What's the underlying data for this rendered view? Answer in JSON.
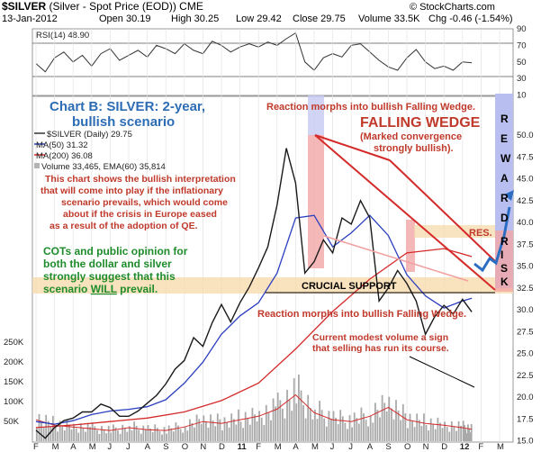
{
  "header": {
    "symbol": "$SILVER",
    "name": "(Silver - Spot Price (EOD))",
    "exchange": "CME",
    "date": "13-Jan-2012",
    "open": "Open 30.19",
    "high": "High 30.25",
    "low": "Low 29.42",
    "close": "Close 29.75",
    "volume": "Volume 33.5K",
    "change": "Chg -0.46 (-1.54%)",
    "watermark": "© StockCharts.com"
  },
  "rsi": {
    "label": "RSI(14) 48.90",
    "ticks": [
      "90",
      "70",
      "50",
      "30",
      "10"
    ]
  },
  "price_legend": {
    "daily": "$SILVER (Daily) 29.75",
    "ma50": "MA(50) 31.32",
    "ma200": "MA(200) 36.08",
    "volume": "Volume 33,465, EMA(60) 35,814"
  },
  "price_ticks": [
    "50.0",
    "47.5",
    "45.0",
    "42.5",
    "40.0",
    "37.5",
    "35.0",
    "32.5",
    "30.0",
    "27.5",
    "25.0",
    "22.5",
    "20.0",
    "17.5",
    "15.0"
  ],
  "volume_ticks": [
    "250K",
    "200K",
    "150K",
    "100K",
    "50K"
  ],
  "x_ticks": [
    "F",
    "M",
    "A",
    "M",
    "J",
    "J",
    "A",
    "S",
    "O",
    "N",
    "D",
    "11",
    "F",
    "M",
    "A",
    "M",
    "J",
    "J",
    "A",
    "S",
    "O",
    "N",
    "D",
    "12",
    "F",
    "M"
  ],
  "annotations": {
    "chart_title_1": "Chart B: SILVER: 2-year,",
    "chart_title_2": "bullish scenario",
    "reaction_top": "Reaction morphs into bullish Falling Wedge.",
    "falling_wedge": "FALLING WEDGE",
    "convergence_1": "(Marked convergence",
    "convergence_2": "strongly bullish).",
    "interp_1": "This chart shows the bullish interpretation",
    "interp_2": "that will come into play if the inflationary",
    "interp_3": "scenario prevails, which would come",
    "interp_4": "about if the crisis in Europe eased",
    "interp_5": "as a result of the adoption of QE.",
    "cots_1": "COTs and public opinion for",
    "cots_2": "both the dollar and silver",
    "cots_3": "strongly suggest that this",
    "cots_4a": "scenario ",
    "cots_4b": "WILL",
    "cots_4c": " prevail.",
    "res": "RES.",
    "crucial_support": "CRUCIAL SUPPORT",
    "reaction_bottom": "Reaction morphs into bullish Falling Wedge.",
    "volume_1": "Current modest volume a sign",
    "volume_2": "that selling has run its course.",
    "reward_letters": [
      "R",
      "E",
      "W",
      "A",
      "R",
      "D"
    ],
    "risk_letters": [
      "R",
      "I",
      "S",
      "K"
    ]
  },
  "colors": {
    "price": "#1a1a1a",
    "ma50": "#2b3fbf",
    "ma200": "#d42a2a",
    "annotation_red": "#c0392b",
    "annotation_green": "#1e8c2b",
    "annotation_blue": "#2d6db5",
    "wedge": "#d42a2a",
    "reward_band": "#b8bff0",
    "support_band": "#f7d9a8"
  },
  "chart_data": [
    {
      "type": "line",
      "title": "RSI(14) 48.90",
      "ylim": [
        10,
        90
      ],
      "guides": [
        70,
        30
      ],
      "series": [
        {
          "name": "RSI(14)",
          "x": [
            0,
            0.5,
            1,
            1.5,
            2,
            2.5,
            3,
            3.5,
            4,
            4.5,
            5,
            5.5,
            6,
            6.5,
            7,
            7.5,
            8,
            8.5,
            9,
            9.5,
            10,
            10.5,
            11,
            11.5,
            12,
            12.5,
            13,
            13.5,
            14,
            14.5,
            15,
            15.5,
            16,
            16.5,
            17,
            17.5,
            18,
            18.5,
            19,
            19.5,
            20,
            20.5,
            21,
            21.5,
            22,
            22.5,
            23,
            23.5
          ],
          "values": [
            48,
            38,
            55,
            62,
            50,
            58,
            45,
            60,
            66,
            52,
            58,
            64,
            56,
            70,
            66,
            60,
            72,
            64,
            60,
            75,
            70,
            62,
            68,
            72,
            68,
            74,
            70,
            78,
            85,
            50,
            40,
            55,
            60,
            56,
            70,
            72,
            62,
            52,
            44,
            40,
            55,
            65,
            50,
            42,
            45,
            40,
            50,
            49
          ]
        }
      ]
    },
    {
      "type": "line",
      "title": "$SILVER (Daily) 29.75",
      "x_unit": "months from Feb 2010",
      "ylim": [
        15,
        50
      ],
      "series": [
        {
          "name": "$SILVER (Daily) 29.75",
          "x": [
            0,
            0.5,
            1,
            1.5,
            2,
            2.5,
            3,
            3.5,
            4,
            4.5,
            5,
            5.5,
            6,
            6.5,
            7,
            7.5,
            8,
            8.5,
            9,
            9.5,
            10,
            10.5,
            11,
            11.5,
            12,
            12.5,
            13,
            13.5,
            14,
            14.5,
            15,
            15.5,
            16,
            16.5,
            17,
            17.5,
            18,
            18.5,
            19,
            19.5,
            20,
            20.5,
            21,
            21.5,
            22,
            22.5,
            23,
            23.5
          ],
          "values": [
            16.2,
            15.3,
            16.5,
            17.3,
            17.6,
            18.3,
            18.3,
            19.2,
            18.8,
            17.8,
            17.8,
            18.4,
            19.3,
            20.2,
            21.5,
            23.2,
            24.2,
            26.8,
            25.8,
            28.5,
            30.6,
            28.6,
            30.8,
            32.6,
            34.8,
            37.2,
            42.0,
            48.5,
            44.5,
            34.2,
            35.5,
            38.0,
            36.5,
            40.5,
            39.8,
            42.5,
            40.5,
            31.0,
            32.5,
            34.5,
            33.0,
            31.0,
            27.2,
            29.2,
            30.5,
            29.5,
            31.2,
            29.75
          ]
        },
        {
          "name": "MA(50) 31.32",
          "x": [
            0,
            1,
            2,
            3,
            4,
            5,
            6,
            7,
            8,
            9,
            10,
            11,
            12,
            13,
            14,
            15,
            16,
            17,
            18,
            19,
            20,
            21,
            22,
            23,
            23.5
          ],
          "values": [
            17.2,
            16.9,
            17.3,
            18.0,
            18.4,
            18.6,
            18.9,
            19.7,
            21.6,
            24.0,
            27.2,
            29.3,
            30.8,
            34.2,
            40.5,
            40.8,
            37.2,
            38.8,
            40.8,
            38.5,
            34.0,
            31.6,
            30.2,
            31.0,
            31.32
          ]
        },
        {
          "name": "MA(200) 36.08",
          "x": [
            0,
            2,
            4,
            6,
            8,
            10,
            12,
            14,
            16,
            18,
            20,
            22,
            23.5
          ],
          "values": [
            16.5,
            16.8,
            17.2,
            17.6,
            18.3,
            19.6,
            21.6,
            25.5,
            29.8,
            33.5,
            36.5,
            37.0,
            36.08
          ]
        }
      ]
    },
    {
      "type": "bar",
      "title": "Volume 33,465, EMA(60) 35,814",
      "ylim": [
        0,
        250000
      ],
      "series": [
        {
          "name": "Volume",
          "x": [
            0,
            1,
            2,
            3,
            4,
            5,
            6,
            7,
            8,
            9,
            10,
            11,
            12,
            13,
            14,
            15,
            16,
            17,
            18,
            19,
            20,
            21,
            22,
            23,
            23.5
          ],
          "values": [
            60000,
            45000,
            40000,
            35000,
            30000,
            38000,
            32000,
            30000,
            40000,
            55000,
            50000,
            60000,
            70000,
            90000,
            130000,
            80000,
            60000,
            55000,
            70000,
            95000,
            60000,
            50000,
            45000,
            38000,
            33465
          ]
        }
      ]
    }
  ]
}
